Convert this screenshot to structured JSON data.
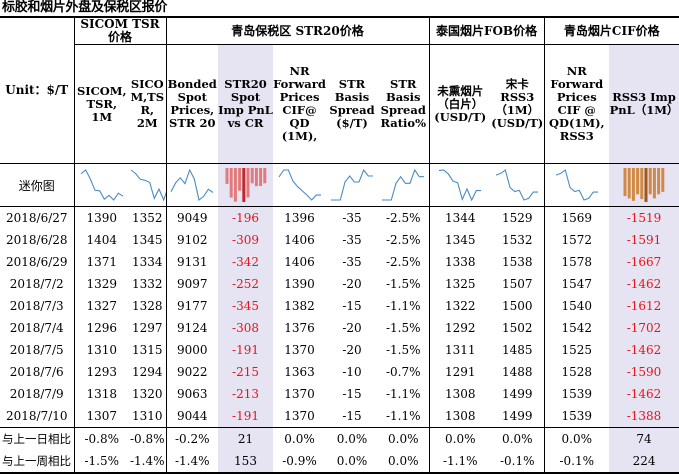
{
  "title": "标胶和烟片外盘及保税区报价",
  "unit_label": "Unit：$/T",
  "sparkline_label": "迷你图",
  "groups": {
    "sicom": "SICOM TSR 价格",
    "qingdao_str20": "青岛保税区 STR20价格",
    "thai_fob": "泰国烟片FOB价格",
    "qingdao_cif": "青岛烟片CIF价格"
  },
  "columns": [
    {
      "key": "sicom_1m",
      "label": "SICOM, TSR, 1M"
    },
    {
      "key": "sicom_2m",
      "label": "SICO M,TS R, 2M"
    },
    {
      "key": "bonded",
      "label": "Bonded Spot Prices, STR 20"
    },
    {
      "key": "str20_pnl",
      "label": "STR20 Spot Imp PnL vs CR"
    },
    {
      "key": "nr_fwd_cif",
      "label": "NR Forward Prices CIF@ QD (1M),"
    },
    {
      "key": "str_basis",
      "label": "STR Basis Spread ($/T)"
    },
    {
      "key": "str_ratio",
      "label": "STR Basis Spread Ratio%"
    },
    {
      "key": "unsmoked",
      "label": "未熏烟片（白片）(USD/T)"
    },
    {
      "key": "rss3_fob",
      "label": "宋卡 RSS3（1M）(USD/T)"
    },
    {
      "key": "nr_fwd_rss3",
      "label": "NR Forward Prices CIF @ QD(1M), RSS3"
    },
    {
      "key": "rss3_pnl",
      "label": "RSS3 Imp PnL（1M）"
    }
  ],
  "rows": [
    {
      "date": "2018/6/27",
      "v": [
        "1390",
        "1352",
        "9049",
        "-196",
        "1396",
        "-35",
        "-2.5%",
        "1344",
        "1529",
        "1569",
        "-1519"
      ]
    },
    {
      "date": "2018/6/28",
      "v": [
        "1404",
        "1345",
        "9102",
        "-309",
        "1406",
        "-35",
        "-2.5%",
        "1345",
        "1532",
        "1572",
        "-1591"
      ]
    },
    {
      "date": "2018/6/29",
      "v": [
        "1371",
        "1334",
        "9131",
        "-342",
        "1406",
        "-35",
        "-2.5%",
        "1338",
        "1538",
        "1578",
        "-1667"
      ]
    },
    {
      "date": "2018/7/2",
      "v": [
        "1329",
        "1332",
        "9097",
        "-252",
        "1390",
        "-20",
        "-1.5%",
        "1325",
        "1507",
        "1547",
        "-1462"
      ]
    },
    {
      "date": "2018/7/3",
      "v": [
        "1327",
        "1328",
        "9177",
        "-345",
        "1382",
        "-15",
        "-1.1%",
        "1322",
        "1500",
        "1540",
        "-1612"
      ]
    },
    {
      "date": "2018/7/4",
      "v": [
        "1296",
        "1297",
        "9124",
        "-308",
        "1376",
        "-20",
        "-1.5%",
        "1292",
        "1502",
        "1542",
        "-1702"
      ]
    },
    {
      "date": "2018/7/5",
      "v": [
        "1310",
        "1315",
        "9000",
        "-191",
        "1370",
        "-20",
        "-1.5%",
        "1311",
        "1485",
        "1525",
        "-1462"
      ]
    },
    {
      "date": "2018/7/6",
      "v": [
        "1293",
        "1294",
        "9022",
        "-215",
        "1363",
        "-10",
        "-0.7%",
        "1291",
        "1488",
        "1528",
        "-1590"
      ]
    },
    {
      "date": "2018/7/9",
      "v": [
        "1318",
        "1320",
        "9063",
        "-213",
        "1370",
        "-15",
        "-1.1%",
        "1308",
        "1499",
        "1539",
        "-1462"
      ]
    },
    {
      "date": "2018/7/10",
      "v": [
        "1307",
        "1310",
        "9044",
        "-191",
        "1370",
        "-15",
        "-1.1%",
        "1308",
        "1499",
        "1539",
        "-1388"
      ]
    }
  ],
  "changes": [
    {
      "label": "与上一日相比",
      "v": [
        "-0.8%",
        "-0.8%",
        "-0.2%",
        "21",
        "0.0%",
        "0.0%",
        "0.0%",
        "0.0%",
        "0.0%",
        "0.0%",
        "74"
      ]
    },
    {
      "label": "与上一周相比",
      "v": [
        "-1.5%",
        "-1.4%",
        "-1.4%",
        "153",
        "-0.9%",
        "0.0%",
        "0.0%",
        "-1.1%",
        "-0.1%",
        "-0.1%",
        "224"
      ]
    }
  ],
  "colors": {
    "highlight": "#e6e3f2",
    "negative": "#e8141b",
    "sparkline": "#4a8bc6",
    "bar_dark": "#c0282d",
    "bar_light": "#e07a7d",
    "bar_brown": "#a0561b",
    "bar_brown_light": "#d08a45"
  }
}
